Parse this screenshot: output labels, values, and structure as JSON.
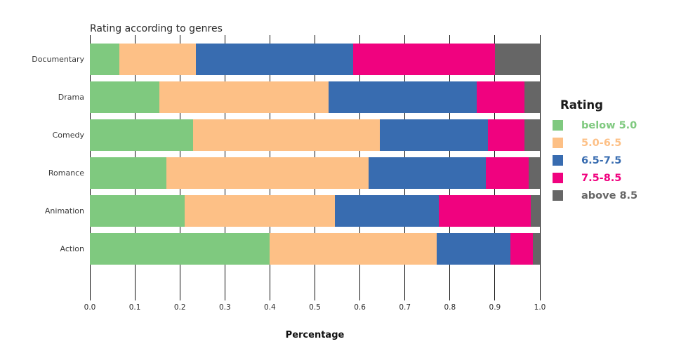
{
  "chart": {
    "title": "Rating according to genres",
    "xlabel": "Percentage",
    "legend_title": "Rating"
  },
  "chart_data": {
    "type": "bar",
    "orientation": "horizontal",
    "stacked": true,
    "normalized": true,
    "title": "Rating according to genres",
    "xlabel": "Percentage",
    "ylabel": "",
    "categories": [
      "Documentary",
      "Drama",
      "Comedy",
      "Romance",
      "Animation",
      "Action"
    ],
    "x_ticks": [
      "0.0",
      "0.1",
      "0.2",
      "0.3",
      "0.4",
      "0.5",
      "0.6",
      "0.7",
      "0.8",
      "0.9",
      "1.0"
    ],
    "xlim": [
      0,
      1
    ],
    "grid": "vertical black gridlines every 0.1",
    "legend_position": "right",
    "legend_title": "Rating",
    "series": [
      {
        "name": "below 5.0",
        "color": "#7fc97f",
        "values": [
          0.065,
          0.155,
          0.23,
          0.17,
          0.21,
          0.4
        ]
      },
      {
        "name": "5.0-6.5",
        "color": "#fdc086",
        "values": [
          0.17,
          0.375,
          0.415,
          0.45,
          0.335,
          0.37
        ]
      },
      {
        "name": "6.5-7.5",
        "color": "#386cb0",
        "values": [
          0.35,
          0.33,
          0.24,
          0.26,
          0.23,
          0.165
        ]
      },
      {
        "name": "7.5-8.5",
        "color": "#f0027f",
        "values": [
          0.315,
          0.105,
          0.08,
          0.095,
          0.205,
          0.05
        ]
      },
      {
        "name": "above 8.5",
        "color": "#666666",
        "values": [
          0.1,
          0.035,
          0.035,
          0.025,
          0.02,
          0.015
        ]
      }
    ]
  }
}
